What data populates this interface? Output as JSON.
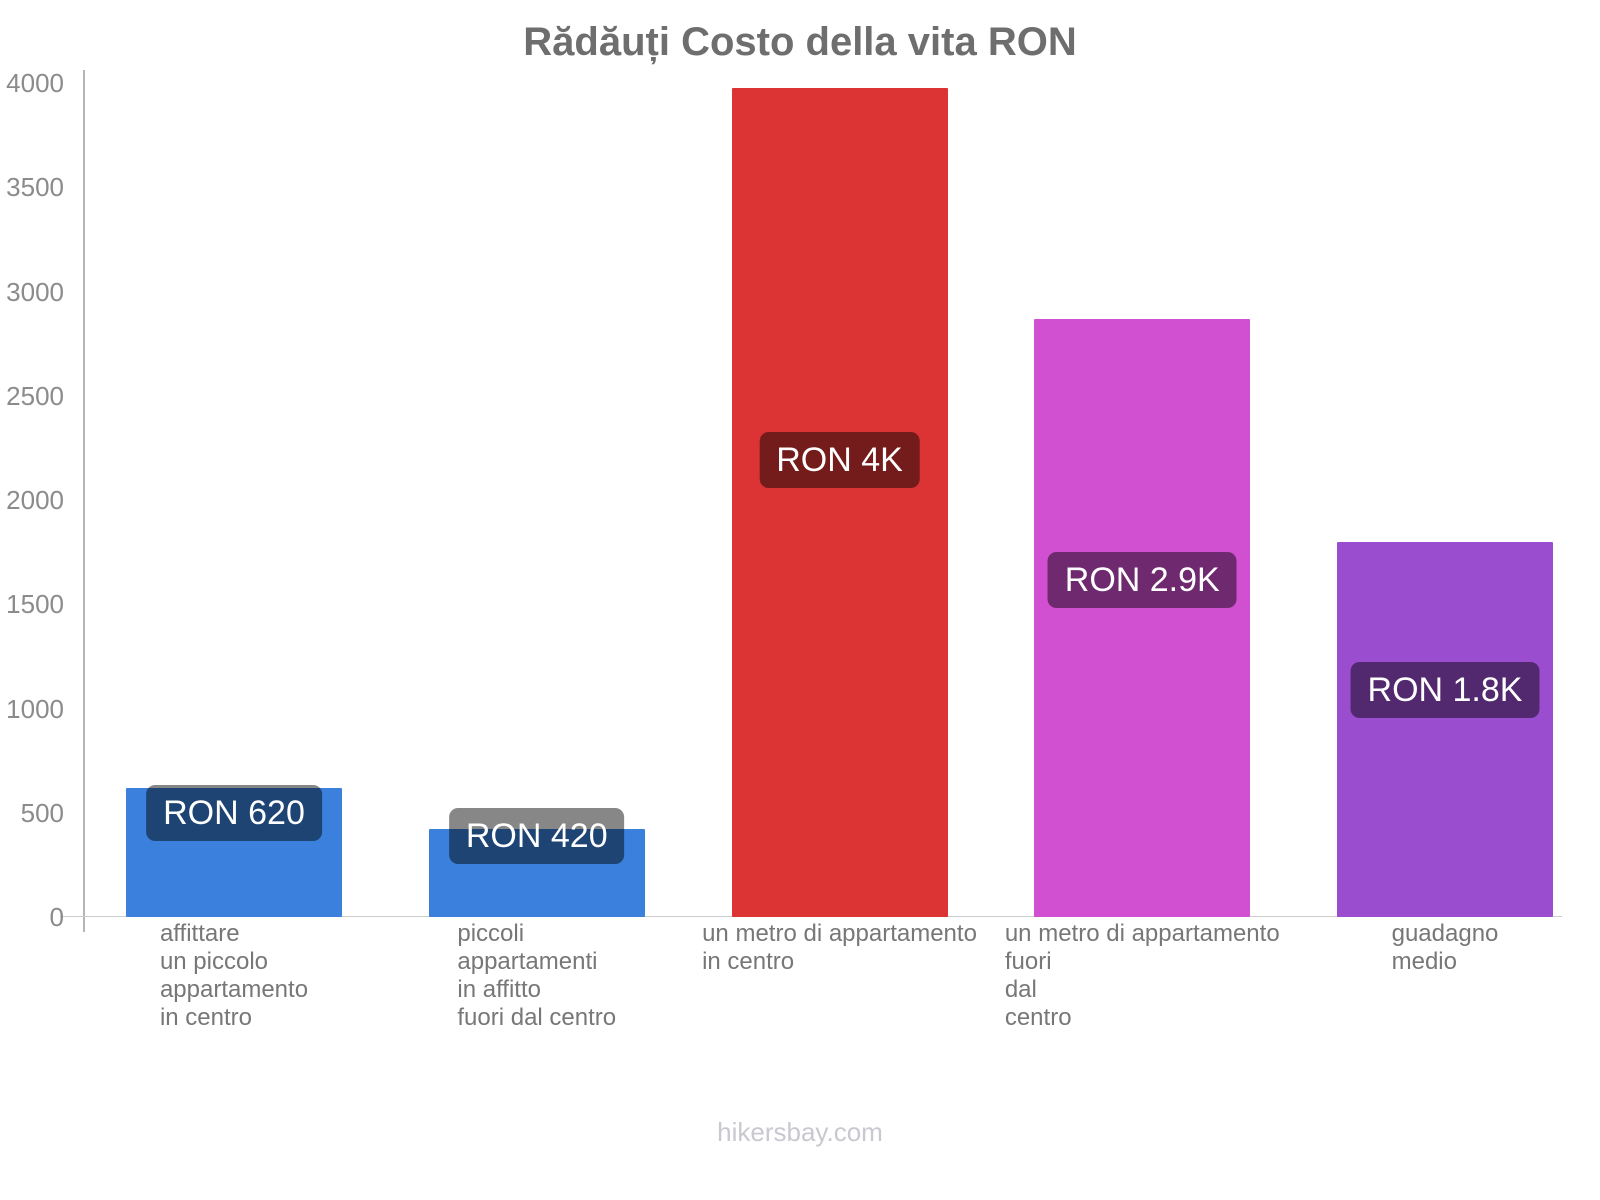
{
  "title": "Rădăuți Costo della vita RON",
  "footer": "hikersbay.com",
  "chart_data": {
    "type": "bar",
    "title": "Rădăuți Costo della vita RON",
    "currency": "RON",
    "categories": [
      "affittare un piccolo appartamento in centro",
      "piccoli appartamenti in affitto fuori dal centro",
      "un metro di appartamento in centro",
      "un metro di appartamento fuori dal centro",
      "guadagno medio"
    ],
    "category_lines": [
      [
        "affittare",
        "un piccolo",
        "appartamento",
        "in centro"
      ],
      [
        "piccoli",
        "appartamenti",
        "in affitto",
        "fuori dal centro"
      ],
      [
        "un metro di appartamento",
        "in centro"
      ],
      [
        "un metro di appartamento",
        "fuori",
        "dal",
        "centro"
      ],
      [
        "guadagno",
        "medio"
      ]
    ],
    "values": [
      620,
      420,
      3975,
      2870,
      1800
    ],
    "bar_labels": [
      "RON 620",
      "RON 420",
      "RON 4K",
      "RON 2.9K",
      "RON 1.8K"
    ],
    "bar_colors": [
      "#3a80dc",
      "#3a80dc",
      "#dc3434",
      "#d14fd1",
      "#9b4dd0"
    ],
    "value_label_bg": "rgba(0,0,0,0.47)",
    "value_label_text_color": "#ffffff",
    "xlabel": "",
    "ylabel": "",
    "ylim": [
      0,
      4000
    ],
    "yticks": [
      0,
      500,
      1000,
      1500,
      2000,
      2500,
      3000,
      3500,
      4000
    ],
    "grid": false,
    "legend": false
  }
}
